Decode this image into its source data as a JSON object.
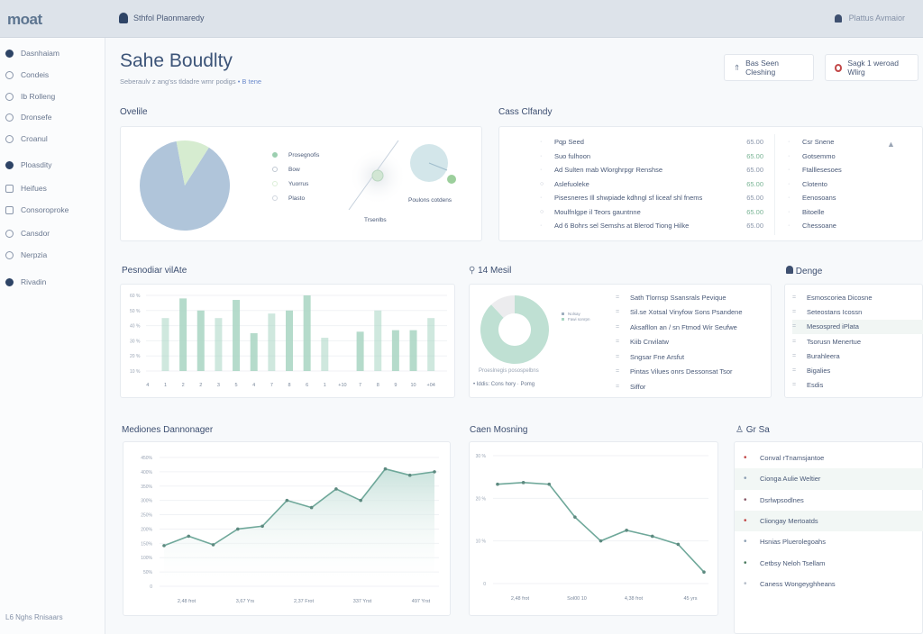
{
  "topbar": {
    "logo": "moat",
    "user": "Sthfol Plaonmaredy",
    "notification": "Plattus Avmaior"
  },
  "sidebar": {
    "items": [
      {
        "label": "Dasnhaiam",
        "icon": "avatar-icon"
      },
      {
        "label": "Condeis",
        "icon": "circle-icon"
      },
      {
        "label": "Ib Rolleng",
        "icon": "user-icon"
      },
      {
        "label": "Dronsefe",
        "icon": "check-circle-icon"
      },
      {
        "label": "Croanul",
        "icon": "circle-icon"
      },
      {
        "label": "Ploasdity",
        "icon": "target-icon"
      },
      {
        "label": "Heifues",
        "icon": "monitor-icon"
      },
      {
        "label": "Consoroproke",
        "icon": "calendar-icon"
      },
      {
        "label": "Cansdor",
        "icon": "circle-icon"
      },
      {
        "label": "Nerpzia",
        "icon": "circle-icon"
      },
      {
        "label": "Rivadin",
        "icon": "dot-icon"
      }
    ],
    "footer": "L6 Nghs Rnisaars"
  },
  "page": {
    "title": "Sahe Boudlty",
    "subtitle": "Seberaulv z ang'ss tldadre wmr podigs",
    "subtitle_link": "• B tene"
  },
  "actions": {
    "primary": "Bas Seen Cleshing",
    "secondary": "Sagk 1 weroad Wlirg"
  },
  "overview": {
    "title": "Ovelile",
    "legend": [
      "Prosegnofis",
      "Bow",
      "Yuorrus",
      "Plasto"
    ],
    "pie": [
      88,
      12
    ],
    "colors": [
      "#b0c5da",
      "#d6ecd0"
    ],
    "trend_label": "Trsenlbs",
    "bubble_label": "Poulons cotdens"
  },
  "cass": {
    "title": "Cass Clfandy",
    "rows": [
      {
        "label": "Pqp Seed",
        "value": "65.00"
      },
      {
        "label": "Suo fulhoon",
        "value": "65.00"
      },
      {
        "label": "Ad Sulten mab Wlorghrpgr Renshse",
        "value": "65.00"
      },
      {
        "label": "Aslefuoleke",
        "value": "65.00"
      },
      {
        "label": "Pisesneres Ill shwpiade kdhngl sf liceaf shl fnems",
        "value": "65.00"
      },
      {
        "label": "Moulfnlgpe il Teors gauntnne",
        "value": "65.00"
      },
      {
        "label": "Ad 6 Bohrs sel Semshs at Blerod Tiong Hilke",
        "value": "65.00"
      }
    ],
    "side": [
      "Csr Snene",
      "Gotsemmo",
      "Ftalllesesoes",
      "Clotento",
      "Eenosoans",
      "Bitoelle",
      "Chessoane"
    ]
  },
  "bars": {
    "title": "Pesnodiar vilAte"
  },
  "mail": {
    "title": "14 Mesil",
    "donut": [
      88,
      12
    ],
    "legend": [
      "Nolsay",
      "Fawi sonrpn"
    ],
    "caption": "Proeslnegis posospelbns",
    "note": "• Iddis: Cons hory · Pomg",
    "rows": [
      "Sath Tlornsp Ssansrals Pevique",
      "Sil.se Xotsal Vinyfow Sons Psandene",
      "Aksafllon an / sn Ftmod Wir Seufwe",
      "Kiib Cnvilatw",
      "Sngsar Fne Arsfut",
      "Pintas Vilues onrs Dessonsat Tsor",
      "Siffor"
    ]
  },
  "denge": {
    "title": "Denge",
    "rows": [
      "Esmoscoriea Dicosne",
      "Seteostans Icossn",
      "Mesospred iPlata",
      "Tsorusn Menertue",
      "Burahleera",
      "Bigalies",
      "Esdis"
    ]
  },
  "grsa": {
    "title": "Gr Sa",
    "rows": [
      {
        "label": "Conval rTnamsjantoe",
        "color": "#c24848"
      },
      {
        "label": "Cionga Aulie Weltier",
        "color": "#8ea0b4"
      },
      {
        "label": "Dsrlwpsodlnes",
        "color": "#8a5a6a"
      },
      {
        "label": "Cliongay Mertoatds",
        "color": "#c24848"
      },
      {
        "label": "Hsnias Pluerolegoahs",
        "color": "#8ea0b4"
      },
      {
        "label": "Cetbsy Neloh Tsellam",
        "color": "#4a7a5e"
      },
      {
        "label": "Caness Wongeyghheans",
        "color": "#b5bdc9"
      }
    ]
  },
  "chart_data": [
    {
      "type": "bar",
      "title": "Pesnodiar vilAte",
      "ylim": [
        10,
        60
      ],
      "yticks": [
        "10 %",
        "20 %",
        "30 %",
        "40 %",
        "50 %",
        "60 %"
      ],
      "categories": [
        "4",
        "1",
        "2",
        "2",
        "3",
        "5",
        "4",
        "7",
        "8",
        "6",
        "1",
        "+10",
        "7",
        "8",
        "9",
        "10",
        "+04"
      ],
      "values": [
        null,
        45,
        58,
        50,
        45,
        57,
        35,
        48,
        50,
        60,
        32,
        null,
        36,
        50,
        37,
        37,
        45
      ],
      "color": "#a8d5c2",
      "grid": true
    },
    {
      "type": "area",
      "title": "Mediones Dannonager",
      "ylim": [
        0,
        450
      ],
      "yticks": [
        "0",
        "50%",
        "100%",
        "150%",
        "200%",
        "250%",
        "300%",
        "350%",
        "400%",
        "450%"
      ],
      "xticks": [
        "2,48 frot",
        "3,67 Yrs",
        "2,37 Frot",
        "337 Yrst",
        "497 Yrst"
      ],
      "values": [
        142,
        175,
        145,
        200,
        210,
        300,
        275,
        340,
        300,
        410,
        388,
        400
      ],
      "color": "#6fa89a",
      "grid": true
    },
    {
      "type": "line",
      "title": "Caen Mosning",
      "ylim": [
        0,
        30
      ],
      "yticks": [
        "0",
        "10 %",
        "20 %",
        "30 %"
      ],
      "xticks": [
        "2,48 frot",
        "Sol00 10",
        "4,38 frot",
        "45 yrs"
      ],
      "values": [
        23.3,
        23.7,
        23.3,
        15.6,
        10.0,
        12.5,
        11.1,
        9.2,
        2.7
      ],
      "color": "#6fa89a",
      "grid": true
    }
  ]
}
